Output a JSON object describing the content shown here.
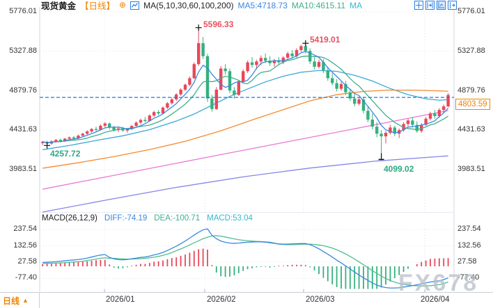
{
  "header": {
    "symbol": "现货黄金",
    "period": "【日线】",
    "plus_icon": "⊕",
    "ma_label": "MA(5,10,30,60,100,200)",
    "ma5": "MA5:4718.73",
    "ma10": "MA10:4615.11",
    "ma_extra": "MA"
  },
  "y_axis_left": [
    "5776.01",
    "5327.88",
    "4879.76",
    "4431.63",
    "3983.51"
  ],
  "y_axis_right": [
    "5776.01",
    "5327.88",
    "4879.76",
    "4431.63",
    "3983.51"
  ],
  "macd_axis": [
    "237.54",
    "132.56",
    "27.58",
    "-77.40"
  ],
  "current_price_label": "4803.59",
  "annotations": {
    "high1": "5596.33",
    "high2": "5419.01",
    "low1": "4257.72",
    "low2": "4099.02"
  },
  "macd_header": {
    "title": "MACD(26,12,9)",
    "diff": "DIFF:-74.19",
    "dea": "DEA:-100.71",
    "macd": "MACD:53.04"
  },
  "bottom_bar": {
    "period": "日线",
    "arrow": "▲",
    "dates": [
      "2026/01",
      "2026/02",
      "2026/03",
      "2026/04"
    ]
  },
  "watermark": "FX678",
  "colors": {
    "up": "#e8475a",
    "down": "#35b07e",
    "ma5": "#3a87e0",
    "ma10": "#3fae8c",
    "ma30": "#3aa8d8",
    "ma60": "#f78a2e",
    "ma100": "#e87ad4",
    "ma200": "#8585e8",
    "diff": "#3a87e0",
    "dea": "#4fbe8f",
    "macd_text": "#35b8c8",
    "accent_orange": "#f08300",
    "current_line": "#1a7ae6",
    "annotation_red": "#e8505e",
    "annotation_teal": "#2fa884",
    "grid": "#dde3ec",
    "frame": "#d0d6de",
    "axis_text": "#333333",
    "marker": "#111111",
    "toolbar_blue": "#2b7de0"
  },
  "chart_data": {
    "type": "candlestick+macd",
    "title": "现货黄金 日线 (Spot Gold, daily)",
    "price_axis": {
      "labels": [
        5776.01,
        5327.88,
        4879.76,
        4431.63,
        3983.51
      ],
      "max": 5776.01,
      "min": 3983.51
    },
    "macd_axis_values": [
      237.54,
      132.56,
      27.58,
      -77.4
    ],
    "x_axis": {
      "month_labels": [
        "2026/01",
        "2026/02",
        "2026/03",
        "2026/04"
      ]
    },
    "current_price": 4803.59,
    "ma_values_shown": {
      "ma5": 4718.73,
      "ma10": 4615.11
    },
    "macd_values_shown": {
      "diff": -74.19,
      "dea": -100.71,
      "macd": 53.04
    },
    "marked_points": {
      "high1_index": 35,
      "high1_price": 5596.33,
      "high2_index": 59,
      "high2_price": 5419.01,
      "low1_index": 1,
      "low1_price": 4257.72,
      "low2_index": 76,
      "low2_price": 4099.02
    },
    "candles": [
      [
        4285,
        4310,
        4262,
        4300
      ],
      [
        4300,
        4312,
        4257.72,
        4280
      ],
      [
        4280,
        4318,
        4268,
        4305
      ],
      [
        4305,
        4330,
        4290,
        4322
      ],
      [
        4322,
        4338,
        4295,
        4308
      ],
      [
        4308,
        4345,
        4298,
        4335
      ],
      [
        4335,
        4360,
        4318,
        4350
      ],
      [
        4350,
        4365,
        4322,
        4338
      ],
      [
        4338,
        4382,
        4330,
        4370
      ],
      [
        4370,
        4402,
        4355,
        4392
      ],
      [
        4392,
        4430,
        4378,
        4418
      ],
      [
        4418,
        4455,
        4402,
        4445
      ],
      [
        4445,
        4472,
        4420,
        4436
      ],
      [
        4436,
        4498,
        4428,
        4482
      ],
      [
        4482,
        4522,
        4462,
        4508
      ],
      [
        4508,
        4518,
        4440,
        4462
      ],
      [
        4462,
        4482,
        4418,
        4434
      ],
      [
        4434,
        4466,
        4410,
        4452
      ],
      [
        4452,
        4470,
        4413,
        4428
      ],
      [
        4428,
        4456,
        4404,
        4444
      ],
      [
        4444,
        4492,
        4436,
        4480
      ],
      [
        4480,
        4532,
        4472,
        4518
      ],
      [
        4518,
        4562,
        4500,
        4548
      ],
      [
        4548,
        4582,
        4520,
        4536
      ],
      [
        4536,
        4612,
        4530,
        4598
      ],
      [
        4598,
        4652,
        4582,
        4638
      ],
      [
        4638,
        4662,
        4600,
        4622
      ],
      [
        4622,
        4702,
        4616,
        4688
      ],
      [
        4688,
        4752,
        4672,
        4738
      ],
      [
        4738,
        4802,
        4722,
        4782
      ],
      [
        4782,
        4852,
        4766,
        4838
      ],
      [
        4838,
        4908,
        4822,
        4892
      ],
      [
        4892,
        4962,
        4876,
        4948
      ],
      [
        4948,
        5042,
        4932,
        5022
      ],
      [
        5022,
        5202,
        5012,
        5182
      ],
      [
        5182,
        5596.33,
        5162,
        5420
      ],
      [
        5420,
        5490,
        5240,
        5272
      ],
      [
        5272,
        5300,
        4752,
        4792
      ],
      [
        4792,
        4832,
        4642,
        4672
      ],
      [
        4672,
        4922,
        4662,
        4892
      ],
      [
        4892,
        5162,
        4882,
        5132
      ],
      [
        5132,
        5182,
        5062,
        5102
      ],
      [
        5102,
        5132,
        4852,
        4882
      ],
      [
        4882,
        4922,
        4792,
        4832
      ],
      [
        4832,
        5002,
        4822,
        4982
      ],
      [
        4982,
        5122,
        4972,
        5102
      ],
      [
        5102,
        5222,
        5082,
        5202
      ],
      [
        5202,
        5262,
        5142,
        5172
      ],
      [
        5172,
        5232,
        5122,
        5212
      ],
      [
        5212,
        5282,
        5172,
        5252
      ],
      [
        5252,
        5302,
        5192,
        5222
      ],
      [
        5222,
        5272,
        5162,
        5192
      ],
      [
        5192,
        5242,
        5152,
        5226
      ],
      [
        5226,
        5262,
        5172,
        5202
      ],
      [
        5202,
        5272,
        5182,
        5256
      ],
      [
        5256,
        5322,
        5232,
        5302
      ],
      [
        5302,
        5342,
        5242,
        5272
      ],
      [
        5272,
        5362,
        5252,
        5342
      ],
      [
        5342,
        5402,
        5322,
        5386
      ],
      [
        5386,
        5419.01,
        5302,
        5332
      ],
      [
        5332,
        5362,
        5182,
        5212
      ],
      [
        5212,
        5262,
        5122,
        5152
      ],
      [
        5152,
        5232,
        5132,
        5206
      ],
      [
        5206,
        5242,
        5082,
        5112
      ],
      [
        5112,
        5152,
        4992,
        5022
      ],
      [
        5022,
        5082,
        4942,
        4966
      ],
      [
        4966,
        5012,
        4872,
        4902
      ],
      [
        4902,
        4982,
        4882,
        4956
      ],
      [
        4956,
        4992,
        4832,
        4862
      ],
      [
        4862,
        4902,
        4762,
        4792
      ],
      [
        4792,
        4842,
        4702,
        4732
      ],
      [
        4732,
        4802,
        4712,
        4782
      ],
      [
        4782,
        4812,
        4622,
        4652
      ],
      [
        4652,
        4702,
        4522,
        4552
      ],
      [
        4552,
        4622,
        4442,
        4472
      ],
      [
        4472,
        4522,
        4352,
        4392
      ],
      [
        4392,
        4432,
        4099.02,
        4362
      ],
      [
        4362,
        4422,
        4282,
        4402
      ],
      [
        4402,
        4492,
        4382,
        4462
      ],
      [
        4462,
        4482,
        4362,
        4392
      ],
      [
        4392,
        4452,
        4342,
        4432
      ],
      [
        4432,
        4522,
        4412,
        4502
      ],
      [
        4502,
        4562,
        4472,
        4542
      ],
      [
        4542,
        4582,
        4462,
        4492
      ],
      [
        4492,
        4532,
        4402,
        4422
      ],
      [
        4422,
        4512,
        4402,
        4492
      ],
      [
        4492,
        4582,
        4482,
        4562
      ],
      [
        4562,
        4642,
        4542,
        4622
      ],
      [
        4622,
        4662,
        4562,
        4592
      ],
      [
        4592,
        4682,
        4572,
        4662
      ],
      [
        4662,
        4722,
        4632,
        4702
      ],
      [
        4702,
        4852,
        4692,
        4832
      ]
    ],
    "ma_overlays": {
      "ma30": [
        [
          0,
          4210
        ],
        [
          6,
          4258
        ],
        [
          12,
          4315
        ],
        [
          18,
          4368
        ],
        [
          24,
          4438
        ],
        [
          30,
          4535
        ],
        [
          34,
          4615
        ],
        [
          38,
          4715
        ],
        [
          42,
          4815
        ],
        [
          46,
          4900
        ],
        [
          50,
          4980
        ],
        [
          54,
          5045
        ],
        [
          58,
          5090
        ],
        [
          62,
          5110
        ],
        [
          66,
          5100
        ],
        [
          70,
          5055
        ],
        [
          74,
          4990
        ],
        [
          78,
          4905
        ],
        [
          82,
          4835
        ],
        [
          86,
          4788
        ],
        [
          89,
          4772
        ],
        [
          91,
          4778
        ]
      ],
      "ma60": [
        [
          0,
          4000
        ],
        [
          8,
          4062
        ],
        [
          16,
          4132
        ],
        [
          24,
          4212
        ],
        [
          32,
          4305
        ],
        [
          40,
          4425
        ],
        [
          48,
          4565
        ],
        [
          54,
          4665
        ],
        [
          60,
          4765
        ],
        [
          66,
          4835
        ],
        [
          72,
          4872
        ],
        [
          78,
          4888
        ],
        [
          84,
          4886
        ],
        [
          88,
          4880
        ],
        [
          91,
          4874
        ]
      ],
      "ma100": [
        [
          0,
          3762
        ],
        [
          10,
          3860
        ],
        [
          20,
          3958
        ],
        [
          30,
          4056
        ],
        [
          40,
          4154
        ],
        [
          50,
          4252
        ],
        [
          60,
          4350
        ],
        [
          70,
          4448
        ],
        [
          80,
          4546
        ],
        [
          91,
          4654
        ]
      ],
      "ma200": [
        [
          0,
          3502
        ],
        [
          15,
          3645
        ],
        [
          30,
          3782
        ],
        [
          45,
          3902
        ],
        [
          60,
          4002
        ],
        [
          75,
          4082
        ],
        [
          91,
          4140
        ]
      ]
    },
    "macd": {
      "diff": [
        25,
        27,
        28,
        30,
        33,
        36,
        39,
        41,
        44,
        48,
        53,
        60,
        67,
        73,
        76,
        58,
        48,
        43,
        42,
        44,
        49,
        53,
        58,
        60,
        66,
        74,
        80,
        90,
        102,
        116,
        130,
        146,
        163,
        182,
        202,
        220,
        235,
        242,
        200,
        178,
        163,
        155,
        150,
        148,
        150,
        153,
        156,
        157,
        158,
        158,
        156,
        152,
        148,
        145,
        143,
        144,
        145,
        146,
        147,
        147,
        140,
        128,
        113,
        96,
        78,
        60,
        40,
        22,
        3,
        -17,
        -37,
        -56,
        -74,
        -91,
        -107,
        -121,
        -131,
        -137,
        -140,
        -140,
        -138,
        -134,
        -129,
        -124,
        -119,
        -113,
        -107,
        -101,
        -97,
        -92,
        -86,
        -74.19
      ],
      "dea": [
        18,
        19,
        20,
        21,
        22,
        24,
        26,
        28,
        30,
        33,
        37,
        42,
        47,
        52,
        55,
        52,
        52,
        50,
        48,
        47,
        47,
        48,
        50,
        52,
        55,
        59,
        64,
        71,
        79,
        89,
        101,
        112,
        125,
        138,
        152,
        165,
        178,
        188,
        196,
        198,
        195,
        189,
        183,
        177,
        172,
        168,
        165,
        163,
        161,
        160,
        158,
        156,
        150,
        143,
        141,
        140,
        140,
        141,
        142,
        143,
        143,
        141,
        138,
        133,
        126,
        118,
        107,
        94,
        80,
        64,
        47,
        29,
        10,
        -9,
        -28,
        -46,
        -63,
        -78,
        -91,
        -102,
        -110,
        -116,
        -121,
        -124,
        -126,
        -127,
        -126,
        -125,
        -122,
        -118,
        -112,
        -100.71
      ]
    }
  }
}
